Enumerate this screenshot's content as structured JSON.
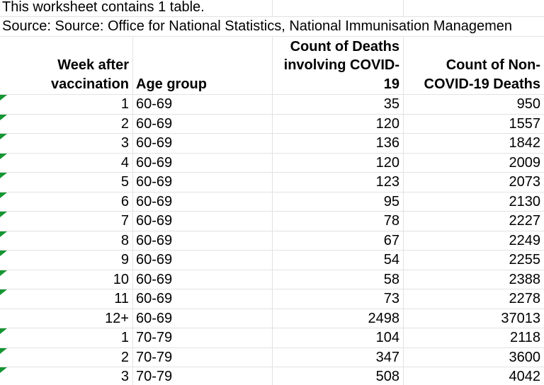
{
  "sheet": {
    "note": "This worksheet contains 1 table.",
    "source_line": "Source: Source: Office for National Statistics, National Immunisation Managemen",
    "header": {
      "week": "Week after\nvaccination",
      "age": "Age group",
      "covid_deaths": "Count of Deaths\ninvolving COVID-\n19",
      "non_covid_deaths": "Count of Non-\nCOVID-19 Deaths"
    },
    "rows": [
      {
        "week": "1",
        "age": "60-69",
        "covid": "35",
        "non_covid": "950",
        "flag": true
      },
      {
        "week": "2",
        "age": "60-69",
        "covid": "120",
        "non_covid": "1557",
        "flag": true
      },
      {
        "week": "3",
        "age": "60-69",
        "covid": "136",
        "non_covid": "1842",
        "flag": true
      },
      {
        "week": "4",
        "age": "60-69",
        "covid": "120",
        "non_covid": "2009",
        "flag": true
      },
      {
        "week": "5",
        "age": "60-69",
        "covid": "123",
        "non_covid": "2073",
        "flag": true
      },
      {
        "week": "6",
        "age": "60-69",
        "covid": "95",
        "non_covid": "2130",
        "flag": true
      },
      {
        "week": "7",
        "age": "60-69",
        "covid": "78",
        "non_covid": "2227",
        "flag": true
      },
      {
        "week": "8",
        "age": "60-69",
        "covid": "67",
        "non_covid": "2249",
        "flag": true
      },
      {
        "week": "9",
        "age": "60-69",
        "covid": "54",
        "non_covid": "2255",
        "flag": true
      },
      {
        "week": "10",
        "age": "60-69",
        "covid": "58",
        "non_covid": "2388",
        "flag": true
      },
      {
        "week": "11",
        "age": "60-69",
        "covid": "73",
        "non_covid": "2278",
        "flag": true
      },
      {
        "week": "12+",
        "age": "60-69",
        "covid": "2498",
        "non_covid": "37013",
        "flag": false
      },
      {
        "week": "1",
        "age": "70-79",
        "covid": "104",
        "non_covid": "2118",
        "flag": true
      },
      {
        "week": "2",
        "age": "70-79",
        "covid": "347",
        "non_covid": "3600",
        "flag": true
      },
      {
        "week": "3",
        "age": "70-79",
        "covid": "508",
        "non_covid": "4042",
        "flag": true
      }
    ],
    "colors": {
      "grid": "#e2e2e2",
      "flag_green": "#149632",
      "text": "#000000",
      "background": "#ffffff"
    }
  }
}
